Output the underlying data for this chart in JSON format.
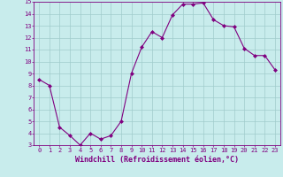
{
  "x": [
    0,
    1,
    2,
    3,
    4,
    5,
    6,
    7,
    8,
    9,
    10,
    11,
    12,
    13,
    14,
    15,
    16,
    17,
    18,
    19,
    20,
    21,
    22,
    23
  ],
  "y": [
    8.5,
    8.0,
    4.5,
    3.8,
    3.0,
    4.0,
    3.5,
    3.8,
    5.0,
    9.0,
    11.2,
    12.5,
    12.0,
    13.9,
    14.8,
    14.8,
    14.9,
    13.5,
    13.0,
    12.9,
    11.1,
    10.5,
    10.5,
    9.3
  ],
  "line_color": "#800080",
  "marker": "D",
  "marker_size": 2,
  "bg_color": "#c8ecec",
  "grid_color": "#a0cccc",
  "xlabel": "Windchill (Refroidissement éolien,°C)",
  "xlabel_color": "#800080",
  "ylim": [
    3,
    15
  ],
  "xlim": [
    -0.5,
    23.5
  ],
  "yticks": [
    3,
    4,
    5,
    6,
    7,
    8,
    9,
    10,
    11,
    12,
    13,
    14,
    15
  ],
  "xticks": [
    0,
    1,
    2,
    3,
    4,
    5,
    6,
    7,
    8,
    9,
    10,
    11,
    12,
    13,
    14,
    15,
    16,
    17,
    18,
    19,
    20,
    21,
    22,
    23
  ],
  "tick_color": "#800080",
  "tick_fontsize": 5.0,
  "xlabel_fontsize": 6.0,
  "spine_color": "#800080",
  "line_width": 0.8
}
